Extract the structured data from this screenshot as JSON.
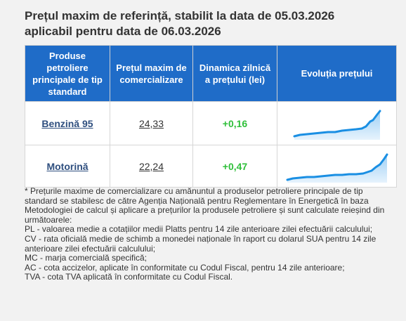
{
  "title_line1": "Prețul maxim de referință, stabilit la data de 05.03.2026",
  "title_line2": "aplicabil pentru data de 06.03.2026",
  "headers": [
    "Produse petroliere principale de tip standard",
    "Prețul maxim de comercializare",
    "Dinamica zilnică a prețului (lei)",
    "Evoluția prețului"
  ],
  "rows": [
    {
      "product": "Benzină 95",
      "price": "24,33",
      "delta": "+0,16"
    },
    {
      "product": "Motorină",
      "price": "22,24",
      "delta": "+0,47"
    }
  ],
  "colors": {
    "header_bg": "#1f6cc8",
    "positive": "#2fbf3a",
    "sparkline": "#1a8fe3"
  },
  "notes": [
    "* Prețurile maxime de comercializare cu amănuntul a produselor petroliere principale de tip standard se stabilesc de către Agenția Națională pentru Reglementare în Energetică în baza Metodologiei de calcul și aplicare a prețurilor la produsele petroliere și sunt calculate reieșind din următoarele:",
    "PL - valoarea medie a cotațiilor medii Platts pentru 14 zile anterioare zilei efectuării calculului;",
    "CV - rata oficială medie de schimb a monedei naționale în raport cu dolarul SUA pentru 14 zile anterioare zilei efectuării calculului;",
    "MC - marja comercială specifică;",
    "AC - cota accizelor, aplicate în conformitate cu Codul Fiscal, pentru 14 zile anterioare;",
    "TVA - cota TVA aplicată în conformitate cu Codul Fiscal."
  ]
}
